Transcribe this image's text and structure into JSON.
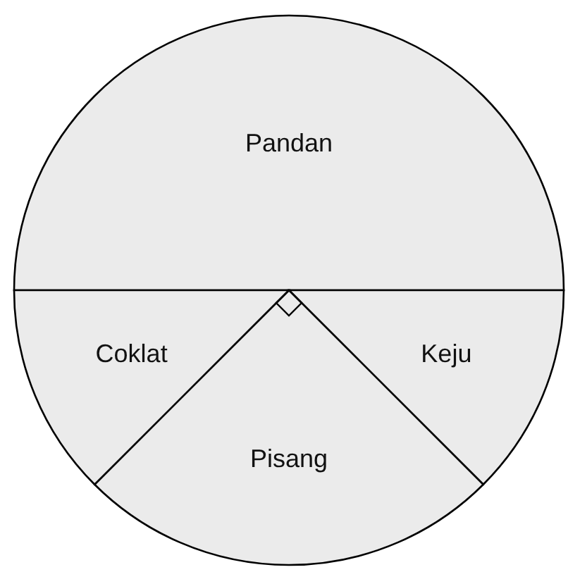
{
  "chart_data": {
    "type": "pie",
    "categories": [
      "Pandan",
      "Keju",
      "Pisang",
      "Coklat"
    ],
    "values": [
      50,
      12.5,
      25,
      12.5
    ],
    "colors": [
      "#ebebeb",
      "#ebebeb",
      "#ebebeb",
      "#ebebeb"
    ]
  }
}
